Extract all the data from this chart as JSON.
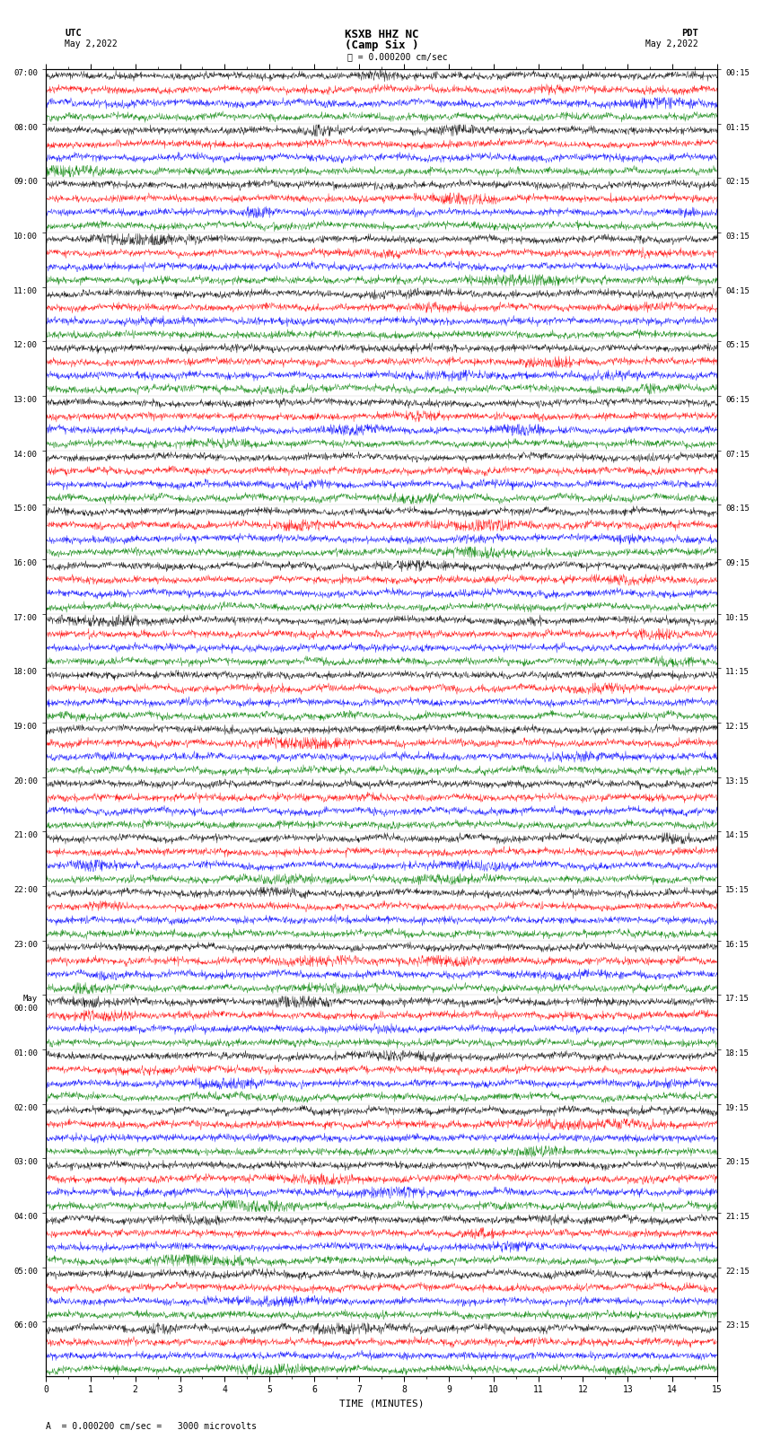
{
  "title_line1": "KSXB HHZ NC",
  "title_line2": "(Camp Six )",
  "scale_label": "= 0.000200 cm/sec",
  "left_label": "UTC",
  "right_label": "PDT",
  "left_date": "May 2,2022",
  "right_date": "May 2,2022",
  "xlabel": "TIME (MINUTES)",
  "bottom_note": "A  = 0.000200 cm/sec =   3000 microvolts",
  "xmin": 0,
  "xmax": 15,
  "colors": [
    "black",
    "red",
    "blue",
    "green"
  ],
  "n_hours": 24,
  "traces_per_hour": 4,
  "utc_labels": [
    "07:00",
    "08:00",
    "09:00",
    "10:00",
    "11:00",
    "12:00",
    "13:00",
    "14:00",
    "15:00",
    "16:00",
    "17:00",
    "18:00",
    "19:00",
    "20:00",
    "21:00",
    "22:00",
    "23:00",
    "May\n00:00",
    "01:00",
    "02:00",
    "03:00",
    "04:00",
    "05:00",
    "06:00"
  ],
  "pdt_labels": [
    "00:15",
    "01:15",
    "02:15",
    "03:15",
    "04:15",
    "05:15",
    "06:15",
    "07:15",
    "08:15",
    "09:15",
    "10:15",
    "11:15",
    "12:15",
    "13:15",
    "14:15",
    "15:15",
    "16:15",
    "17:15",
    "18:15",
    "19:15",
    "20:15",
    "21:15",
    "22:15",
    "23:15"
  ],
  "background_color": "white",
  "trace_amplitude": 0.42,
  "noise_scale": 0.12,
  "n_points": 2000
}
